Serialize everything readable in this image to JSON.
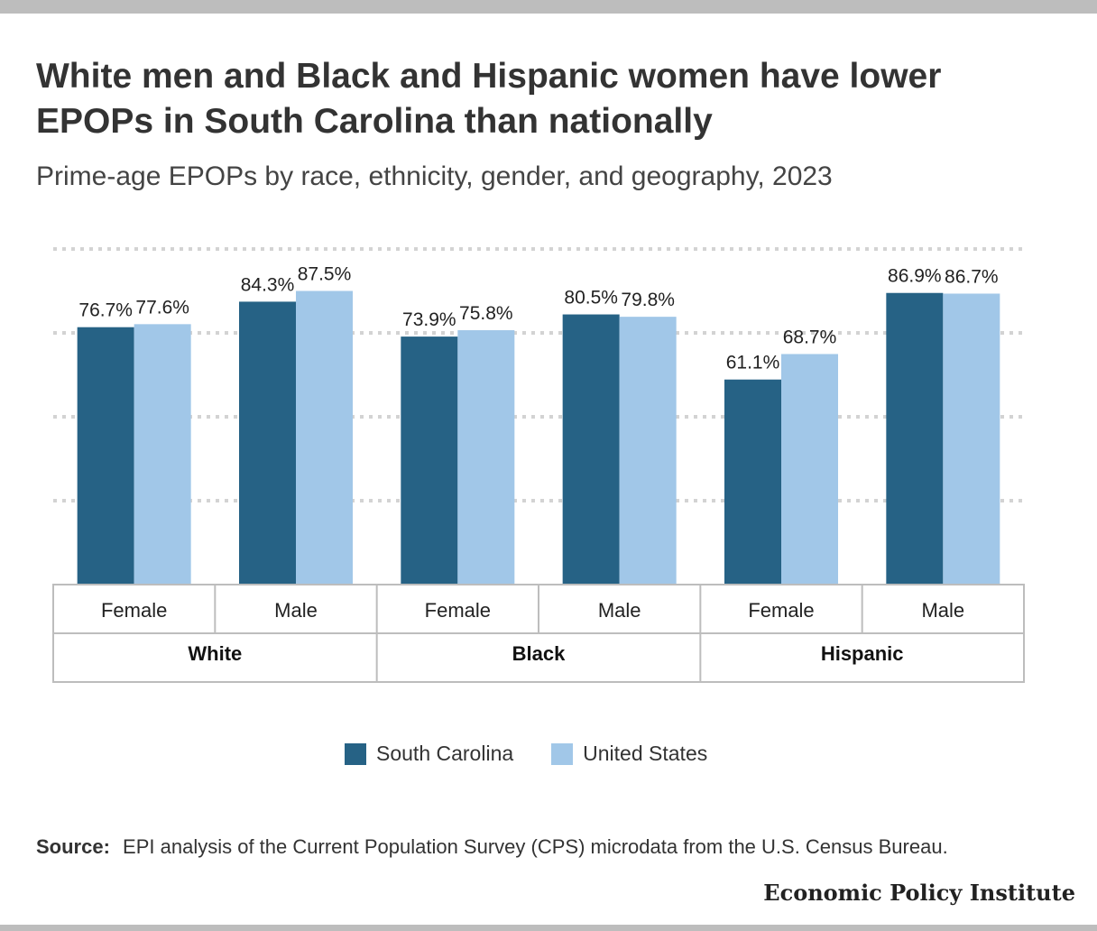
{
  "title": "White men and Black and Hispanic women have lower EPOPs in South Carolina than nationally",
  "subtitle": "Prime-age EPOPs by race, ethnicity, gender, and geography, 2023",
  "source_label": "Source:",
  "source_text": "EPI analysis of the Current Population Survey (CPS) microdata from the U.S. Census Bureau.",
  "brand": "Economic Policy Institute",
  "colors": {
    "south_carolina": "#266285",
    "united_states": "#a1c7e8",
    "grid": "#d3d3d3",
    "table_border": "#bdbdbd"
  },
  "chart_data": {
    "type": "bar",
    "title": "White men and Black and Hispanic women have lower EPOPs in South Carolina than nationally",
    "subtitle": "Prime-age EPOPs by race, ethnicity, gender, and geography, 2023",
    "groups": [
      "White",
      "Black",
      "Hispanic"
    ],
    "categories": [
      "Female",
      "Male",
      "Female",
      "Male",
      "Female",
      "Male"
    ],
    "group_of_category": [
      0,
      0,
      1,
      1,
      2,
      2
    ],
    "series": [
      {
        "name": "South Carolina",
        "values": [
          76.7,
          84.3,
          73.9,
          80.5,
          61.1,
          86.9
        ],
        "labels": [
          "76.7%",
          "84.3%",
          "73.9%",
          "80.5%",
          "61.1%",
          "86.9%"
        ]
      },
      {
        "name": "United States",
        "values": [
          77.6,
          87.5,
          75.8,
          79.8,
          68.7,
          86.7
        ],
        "labels": [
          "77.6%",
          "87.5%",
          "75.8%",
          "79.8%",
          "68.7%",
          "86.7%"
        ]
      }
    ],
    "ylim": [
      0,
      100
    ],
    "gridlines": [
      25,
      50,
      75,
      100
    ],
    "grid": true,
    "legend": "bottom"
  }
}
